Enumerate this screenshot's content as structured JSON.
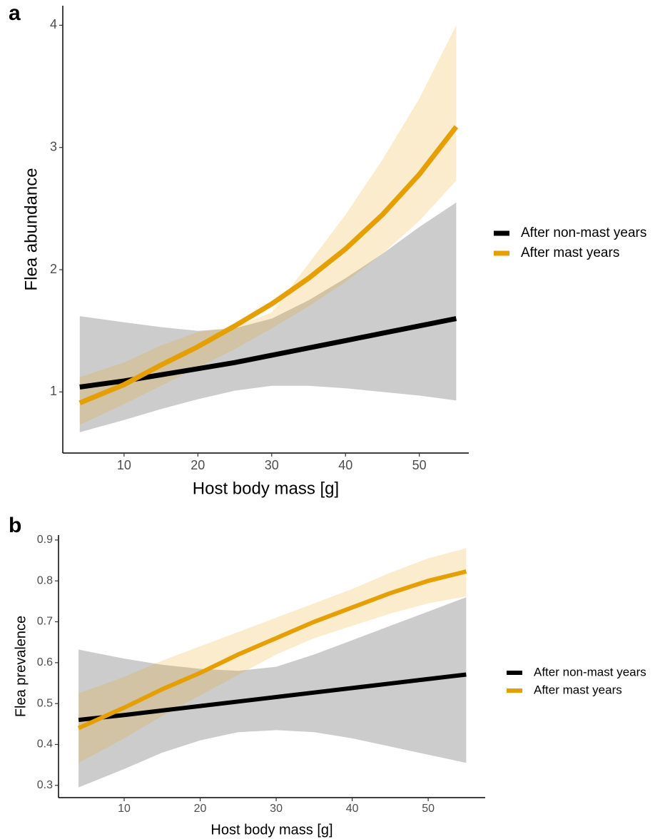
{
  "chart_data": [
    {
      "type": "line",
      "panel_label": "a",
      "x_label": "Host body mass [g]",
      "y_label": "Flea abundance",
      "x": [
        4,
        10,
        15,
        20,
        25,
        30,
        35,
        40,
        45,
        50,
        55
      ],
      "xlim": [
        1.7,
        56.7
      ],
      "xticks": [
        10,
        20,
        30,
        40,
        50
      ],
      "ylim": [
        0.5,
        4.16
      ],
      "yticks": [
        1,
        2,
        3,
        4
      ],
      "grid": false,
      "series": [
        {
          "name": "After non-mast years",
          "color": "#000000",
          "values": [
            1.04,
            1.09,
            1.14,
            1.19,
            1.24,
            1.3,
            1.36,
            1.42,
            1.48,
            1.54,
            1.6
          ],
          "lower": [
            0.67,
            0.77,
            0.86,
            0.94,
            1.01,
            1.05,
            1.05,
            1.03,
            1.0,
            0.97,
            0.93
          ],
          "upper": [
            1.62,
            1.57,
            1.53,
            1.5,
            1.52,
            1.6,
            1.75,
            1.93,
            2.13,
            2.35,
            2.55
          ]
        },
        {
          "name": "After mast years",
          "color": "#E69F00",
          "values": [
            0.91,
            1.06,
            1.22,
            1.37,
            1.54,
            1.72,
            1.93,
            2.17,
            2.45,
            2.78,
            3.17
          ],
          "lower": [
            0.73,
            0.9,
            1.05,
            1.2,
            1.35,
            1.52,
            1.7,
            1.9,
            2.13,
            2.4,
            2.73
          ],
          "upper": [
            1.12,
            1.24,
            1.38,
            1.49,
            1.53,
            1.65,
            2.05,
            2.45,
            2.9,
            3.4,
            4.0
          ]
        }
      ]
    },
    {
      "type": "line",
      "panel_label": "b",
      "x_label": "Host body mass [g]",
      "y_label": "Flea prevalence",
      "x": [
        4,
        10,
        15,
        20,
        25,
        30,
        35,
        40,
        45,
        50,
        55
      ],
      "xlim": [
        1.36,
        57.5
      ],
      "xticks": [
        10,
        20,
        30,
        40,
        50
      ],
      "ylim": [
        0.27,
        0.912
      ],
      "yticks": [
        0.3,
        0.4,
        0.5,
        0.6,
        0.7,
        0.8,
        0.9
      ],
      "grid": false,
      "series": [
        {
          "name": "After non-mast years",
          "color": "#000000",
          "values": [
            0.46,
            0.472,
            0.483,
            0.494,
            0.505,
            0.516,
            0.527,
            0.538,
            0.549,
            0.56,
            0.571
          ],
          "lower": [
            0.295,
            0.34,
            0.38,
            0.41,
            0.43,
            0.435,
            0.43,
            0.415,
            0.395,
            0.375,
            0.355
          ],
          "upper": [
            0.632,
            0.61,
            0.595,
            0.585,
            0.58,
            0.59,
            0.62,
            0.655,
            0.69,
            0.725,
            0.76
          ]
        },
        {
          "name": "After mast years",
          "color": "#E69F00",
          "values": [
            0.44,
            0.49,
            0.535,
            0.575,
            0.62,
            0.66,
            0.7,
            0.735,
            0.77,
            0.8,
            0.823
          ],
          "lower": [
            0.355,
            0.415,
            0.47,
            0.52,
            0.57,
            0.62,
            0.66,
            0.69,
            0.72,
            0.745,
            0.762
          ],
          "upper": [
            0.525,
            0.565,
            0.605,
            0.64,
            0.675,
            0.71,
            0.745,
            0.78,
            0.82,
            0.855,
            0.88
          ]
        }
      ]
    }
  ]
}
